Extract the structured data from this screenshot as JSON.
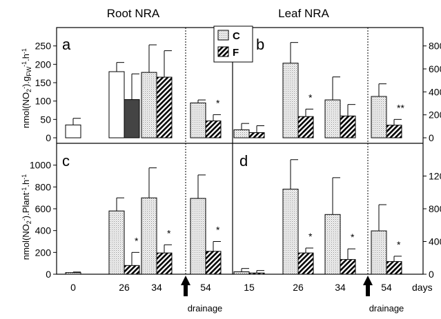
{
  "column_titles": {
    "left": "Root NRA",
    "right": "Leaf NRA"
  },
  "ylabels": {
    "top": "nmol(NO₂⁻).gₑᵥ⁻¹.h⁻¹",
    "bottom": "nmol(NO₂⁻).Plant⁻¹.h⁻¹"
  },
  "ylabel_top_text": "nmol(NO2-).gFW-1.h-1",
  "ylabel_bottom_text": "nmol(NO2-).Plant-1.h-1",
  "legend": {
    "c_label": "C",
    "f_label": "F"
  },
  "xaxis": {
    "days_label": "days",
    "drainage_label": "drainage"
  },
  "colors": {
    "bar_edge": "#000000",
    "c_fill": "#e6e6e6",
    "f_fill": "#ffffff"
  },
  "chart_data": [
    {
      "panel": "a",
      "type": "bar",
      "categories": [
        "0",
        "26",
        "34",
        "54"
      ],
      "ylim": [
        0,
        300
      ],
      "yticks": [
        0,
        50,
        100,
        150,
        200,
        250
      ],
      "yaxis_side": "left",
      "series": [
        {
          "name": "C",
          "values": [
            35,
            180,
            178,
            95
          ],
          "errors": [
            18,
            25,
            75,
            8
          ]
        },
        {
          "name": "F",
          "values": [
            null,
            104,
            165,
            46
          ],
          "errors": [
            null,
            70,
            72,
            17
          ]
        }
      ],
      "c_open_categories": [
        "0",
        "26"
      ],
      "f_solid_categories": [
        "26"
      ],
      "significance": [
        "",
        "",
        "",
        "*"
      ]
    },
    {
      "panel": "b",
      "type": "bar",
      "categories": [
        "15",
        "26",
        "34",
        "54"
      ],
      "ylim": [
        0,
        960
      ],
      "yticks": [
        0,
        200,
        400,
        600,
        800
      ],
      "yaxis_side": "right",
      "series": [
        {
          "name": "C",
          "values": [
            70,
            650,
            330,
            360
          ],
          "errors": [
            55,
            180,
            200,
            110
          ]
        },
        {
          "name": "F",
          "values": [
            45,
            185,
            190,
            110
          ],
          "errors": [
            60,
            65,
            100,
            50
          ]
        }
      ],
      "significance": [
        "",
        "*",
        "",
        "**"
      ]
    },
    {
      "panel": "c",
      "type": "bar",
      "categories": [
        "0",
        "26",
        "34",
        "54"
      ],
      "ylim": [
        0,
        1200
      ],
      "yticks": [
        0,
        200,
        400,
        600,
        800,
        1000
      ],
      "yaxis_side": "left",
      "series": [
        {
          "name": "C",
          "values": [
            15,
            580,
            700,
            695
          ],
          "errors": [
            5,
            120,
            275,
            215
          ]
        },
        {
          "name": "F",
          "values": [
            null,
            80,
            195,
            210
          ],
          "errors": [
            null,
            120,
            75,
            90
          ]
        }
      ],
      "significance": [
        "",
        "*",
        "*",
        "*"
      ]
    },
    {
      "panel": "d",
      "type": "bar",
      "categories": [
        "15",
        "26",
        "34",
        "54"
      ],
      "ylim": [
        0,
        1600
      ],
      "yticks": [
        0,
        400,
        800,
        1200
      ],
      "yaxis_side": "right",
      "series": [
        {
          "name": "C",
          "values": [
            30,
            1040,
            730,
            530
          ],
          "errors": [
            40,
            360,
            450,
            320
          ]
        },
        {
          "name": "F",
          "values": [
            15,
            260,
            180,
            155
          ],
          "errors": [
            30,
            60,
            130,
            65
          ]
        }
      ],
      "significance": [
        "",
        "*",
        "*",
        "*"
      ]
    }
  ]
}
